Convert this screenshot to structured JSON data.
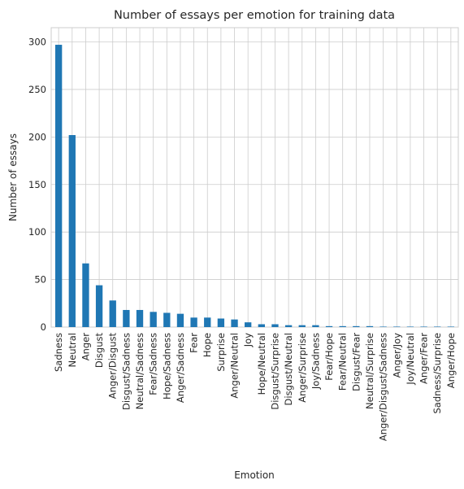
{
  "chart_data": {
    "type": "bar",
    "title": "Number of essays per emotion for training data",
    "xlabel": "Emotion",
    "ylabel": "Number of essays",
    "ylim": [
      0,
      315
    ],
    "yticks": [
      0,
      50,
      100,
      150,
      200,
      250,
      300
    ],
    "grid": true,
    "bar_color": "#1f77b4",
    "categories": [
      "Sadness",
      "Neutral",
      "Anger",
      "Disgust",
      "Anger/Disgust",
      "Disgust/Sadness",
      "Neutral/Sadness",
      "Fear/Sadness",
      "Hope/Sadness",
      "Anger/Sadness",
      "Fear",
      "Hope",
      "Surprise",
      "Anger/Neutral",
      "Joy",
      "Hope/Neutral",
      "Disgust/Surprise",
      "Disgust/Neutral",
      "Anger/Surprise",
      "Joy/Sadness",
      "Fear/Hope",
      "Fear/Neutral",
      "Disgust/Fear",
      "Neutral/Surprise",
      "Anger/Disgust/Sadness",
      "Anger/Joy",
      "Joy/Neutral",
      "Anger/Fear",
      "Sadness/Surprise",
      "Anger/Hope"
    ],
    "values": [
      297,
      202,
      67,
      44,
      28,
      18,
      18,
      16,
      15,
      14,
      10,
      10,
      9,
      8,
      5,
      3,
      3,
      2,
      2,
      2,
      1,
      1,
      1,
      1,
      0.5,
      0.5,
      0.5,
      0.5,
      0.5,
      0.5
    ]
  }
}
